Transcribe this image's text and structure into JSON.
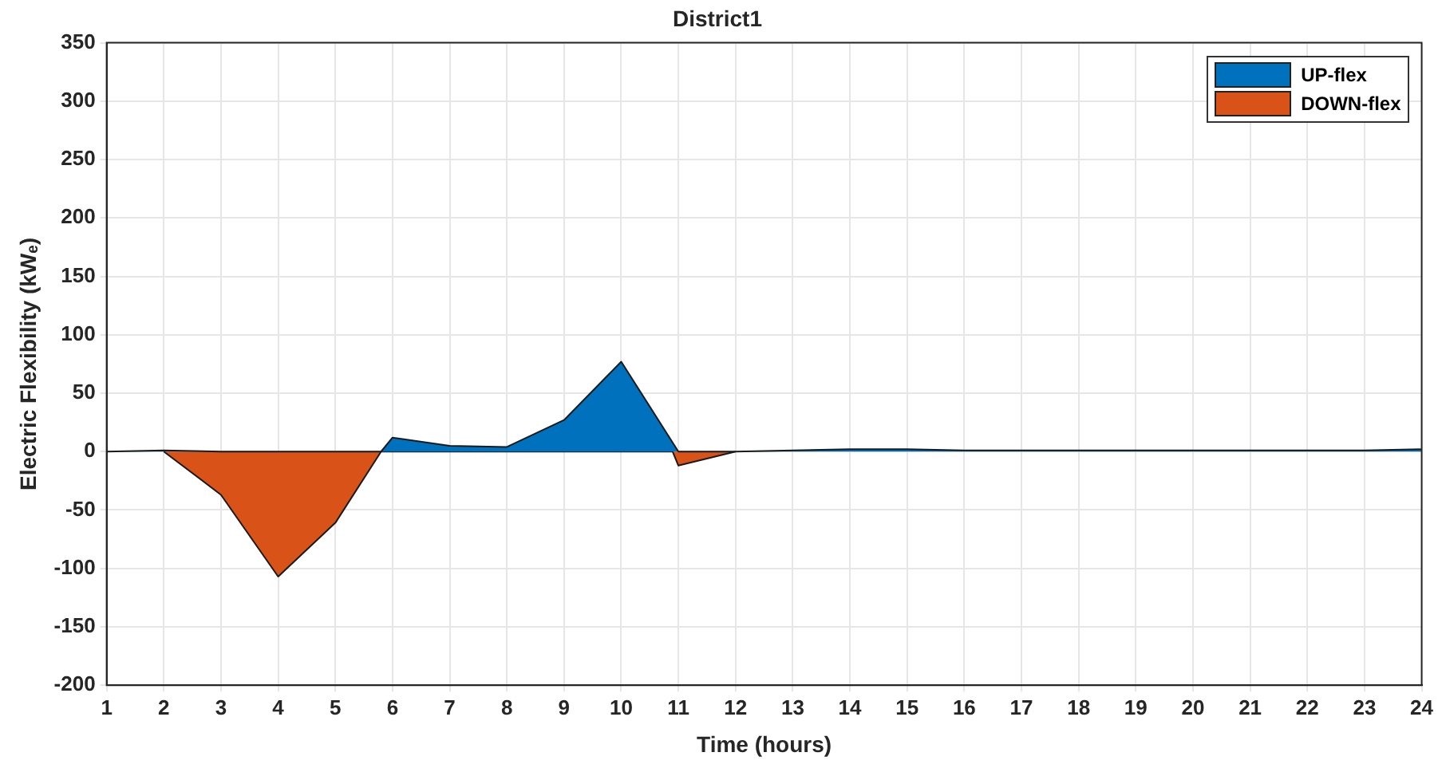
{
  "chart_data": {
    "type": "area",
    "title": "District1",
    "xlabel": "Time (hours)",
    "ylabel": "Electric Flexibility (kWₑ)",
    "xlim": [
      1,
      24
    ],
    "xticks": [
      1,
      2,
      3,
      4,
      5,
      6,
      7,
      8,
      9,
      10,
      11,
      12,
      13,
      14,
      15,
      16,
      17,
      18,
      19,
      20,
      21,
      22,
      23,
      24
    ],
    "ylim": [
      -200,
      350
    ],
    "yticks": [
      -200,
      -150,
      -100,
      -50,
      0,
      50,
      100,
      150,
      200,
      250,
      300,
      350
    ],
    "grid": true,
    "legend": "top right",
    "series": [
      {
        "name": "UP-flex",
        "color": "#0072bd",
        "x": [
          1,
          2,
          3,
          4,
          5,
          5.8,
          6,
          7,
          8,
          9,
          10,
          11,
          12,
          13,
          14,
          15,
          16,
          17,
          18,
          19,
          20,
          21,
          22,
          23,
          24
        ],
        "values": [
          0,
          1,
          0,
          0,
          0,
          0,
          12,
          5,
          4,
          27,
          77,
          0,
          0,
          1,
          2,
          2,
          1,
          1,
          1,
          1,
          1,
          1,
          1,
          1,
          2
        ]
      },
      {
        "name": "DOWN-flex",
        "color": "#d95319",
        "x": [
          2,
          3,
          4,
          5,
          5.8,
          10.9,
          11,
          12
        ],
        "values": [
          0,
          -37,
          -107,
          -61,
          0,
          0,
          -12,
          0
        ]
      }
    ]
  }
}
